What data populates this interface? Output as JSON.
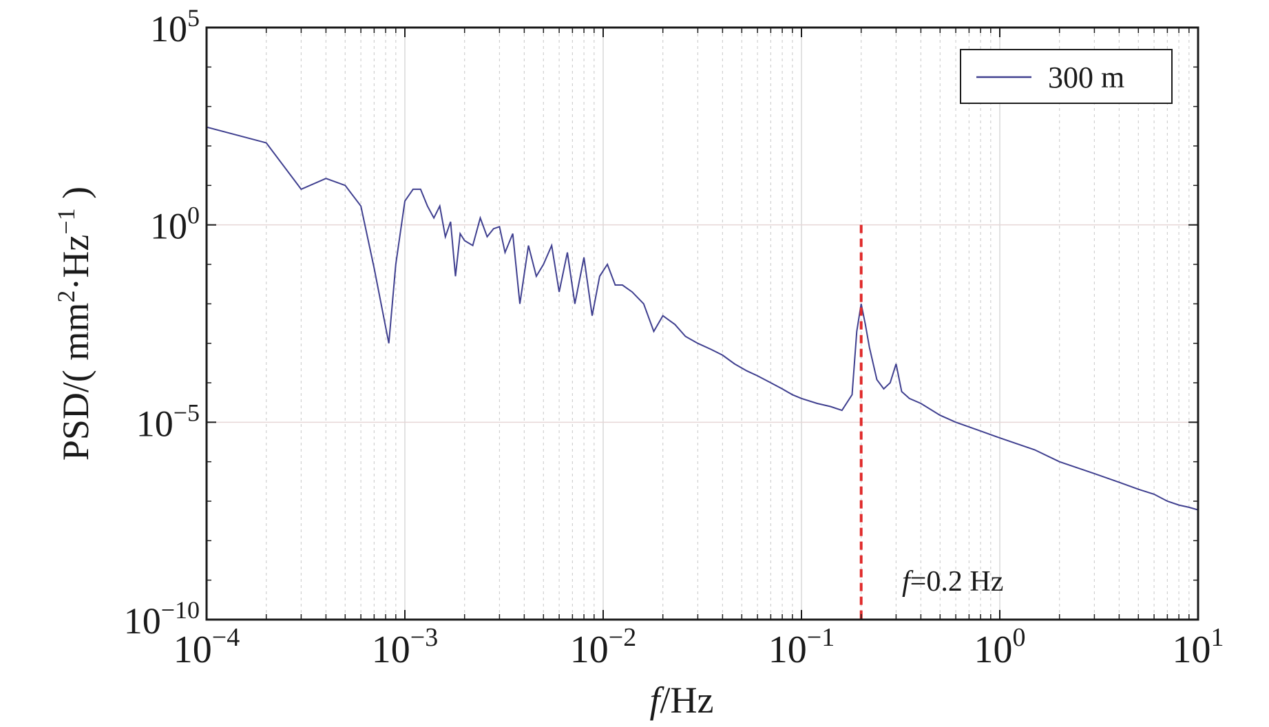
{
  "chart_data": {
    "type": "line",
    "title": "",
    "xlabel_italic": "f",
    "xlabel_rest": "/Hz",
    "ylabel_parts": [
      "PSD/( mm",
      "2",
      "·Hz",
      "−1",
      " )"
    ],
    "x_scale": "log",
    "y_scale": "log",
    "xlim": [
      0.0001,
      10
    ],
    "ylim": [
      1e-10,
      100000
    ],
    "x_ticks": [
      {
        "base": "10",
        "exp": "−4",
        "value": 0.0001
      },
      {
        "base": "10",
        "exp": "−3",
        "value": 0.001
      },
      {
        "base": "10",
        "exp": "−2",
        "value": 0.01
      },
      {
        "base": "10",
        "exp": "−1",
        "value": 0.1
      },
      {
        "base": "10",
        "exp": "0",
        "value": 1
      },
      {
        "base": "10",
        "exp": "1",
        "value": 10
      }
    ],
    "y_ticks": [
      {
        "base": "10",
        "exp": "5",
        "value": 100000
      },
      {
        "base": "10",
        "exp": "0",
        "value": 1
      },
      {
        "base": "10",
        "exp": "−5",
        "value": 1e-05
      },
      {
        "base": "10",
        "exp": "−10",
        "value": 1e-10
      }
    ],
    "grid": true,
    "legend_position": "top-right",
    "series": [
      {
        "name": "300 m",
        "color": "#3f3f8f",
        "x": [
          0.0001,
          0.0002,
          0.0003,
          0.0004,
          0.0005,
          0.0006,
          0.0007,
          0.00083,
          0.0009,
          0.001,
          0.0011,
          0.0012,
          0.0013,
          0.0014,
          0.0015,
          0.0016,
          0.0017,
          0.0018,
          0.0019,
          0.002,
          0.0022,
          0.0024,
          0.0026,
          0.0028,
          0.003,
          0.0032,
          0.0035,
          0.0038,
          0.0042,
          0.0046,
          0.005,
          0.0055,
          0.006,
          0.0066,
          0.0072,
          0.008,
          0.0088,
          0.0096,
          0.0105,
          0.0115,
          0.0125,
          0.014,
          0.016,
          0.018,
          0.02,
          0.023,
          0.026,
          0.03,
          0.035,
          0.04,
          0.046,
          0.053,
          0.06,
          0.07,
          0.08,
          0.09,
          0.1,
          0.12,
          0.14,
          0.16,
          0.18,
          0.19,
          0.2,
          0.21,
          0.22,
          0.24,
          0.26,
          0.28,
          0.3,
          0.32,
          0.35,
          0.4,
          0.5,
          0.6,
          0.8,
          1,
          1.5,
          2,
          3,
          4,
          5,
          6,
          7,
          8,
          9,
          10
        ],
        "y": [
          300,
          120,
          8,
          15,
          10,
          3,
          0.08,
          0.001,
          0.1,
          4,
          8,
          8,
          3,
          1.5,
          3,
          0.5,
          1.2,
          0.05,
          0.6,
          0.4,
          0.3,
          1.5,
          0.5,
          0.8,
          0.9,
          0.2,
          0.6,
          0.01,
          0.3,
          0.05,
          0.1,
          0.3,
          0.02,
          0.2,
          0.01,
          0.15,
          0.005,
          0.05,
          0.1,
          0.03,
          0.03,
          0.02,
          0.01,
          0.002,
          0.005,
          0.003,
          0.0015,
          0.001,
          0.0007,
          0.0005,
          0.0003,
          0.0002,
          0.00015,
          0.0001,
          7e-05,
          5e-05,
          4e-05,
          3e-05,
          2.5e-05,
          2e-05,
          5e-05,
          0.002,
          0.01,
          0.003,
          0.0008,
          0.00012,
          7e-05,
          0.0001,
          0.0003,
          6e-05,
          4e-05,
          3e-05,
          1.5e-05,
          1e-05,
          6e-06,
          4e-06,
          2e-06,
          1e-06,
          5e-07,
          3e-07,
          2e-07,
          1.5e-07,
          1e-07,
          8e-08,
          7e-08,
          6e-08
        ]
      }
    ],
    "annotations": [
      {
        "type": "vline",
        "x": 0.2,
        "color": "#e02a2a",
        "style": "dashed"
      },
      {
        "type": "text",
        "italic": "f",
        "rest": "=0.2 Hz"
      }
    ]
  }
}
